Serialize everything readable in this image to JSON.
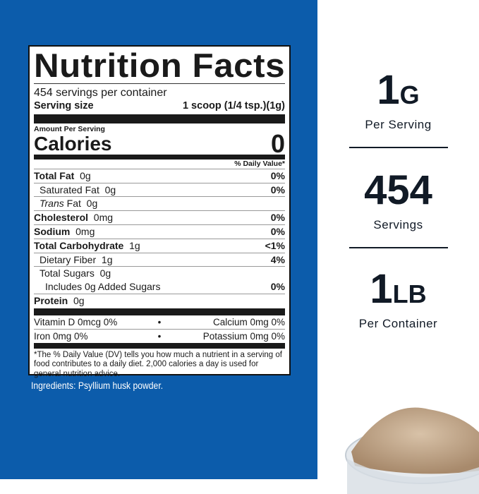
{
  "label": {
    "title": "Nutrition Facts",
    "servings": "454 servings per container",
    "serving_size_label": "Serving size",
    "serving_size_value": "1 scoop (1/4 tsp.)(1g)",
    "amount_per_serving": "Amount Per Serving",
    "calories_label": "Calories",
    "calories_value": "0",
    "dv_header": "% Daily Value*",
    "nutrients": [
      {
        "name": "Total Fat",
        "amount": "0g",
        "dv": "0%"
      },
      {
        "name": "Saturated Fat",
        "amount": "0g",
        "dv": "0%"
      },
      {
        "name": "Trans",
        "name2": "Fat",
        "amount": "0g",
        "dv": ""
      },
      {
        "name": "Cholesterol",
        "amount": "0mg",
        "dv": "0%"
      },
      {
        "name": "Sodium",
        "amount": "0mg",
        "dv": "0%"
      },
      {
        "name": "Total Carbohydrate",
        "amount": "1g",
        "dv": "<1%"
      },
      {
        "name": "Dietary Fiber",
        "amount": "1g",
        "dv": "4%"
      },
      {
        "name": "Total Sugars",
        "amount": "0g",
        "dv": ""
      },
      {
        "name": "Includes 0g Added Sugars",
        "amount": "",
        "dv": "0%"
      },
      {
        "name": "Protein",
        "amount": "0g",
        "dv": ""
      }
    ],
    "micros": [
      {
        "left": "Vitamin D  0mcg  0%",
        "right": "Calcium  0mg  0%"
      },
      {
        "left": "Iron  0mg  0%",
        "right": "Potassium  0mg  0%"
      }
    ],
    "bullet": "•",
    "footnote": "*The % Daily Value (DV) tells you how much a nutrient in a serving of food contributes to a daily diet.  2,000 calories a day is used for general nutrition advice."
  },
  "ingredients": "Ingredients: Psyllium husk powder.",
  "stats": [
    {
      "value": "1",
      "unit": "G",
      "label": "Per Serving"
    },
    {
      "value": "454",
      "unit": "",
      "label": "Servings"
    },
    {
      "value": "1",
      "unit": "LB",
      "label": "Per Container"
    }
  ],
  "colors": {
    "panel_blue": "#0c5cab",
    "text_dark": "#111a26"
  }
}
